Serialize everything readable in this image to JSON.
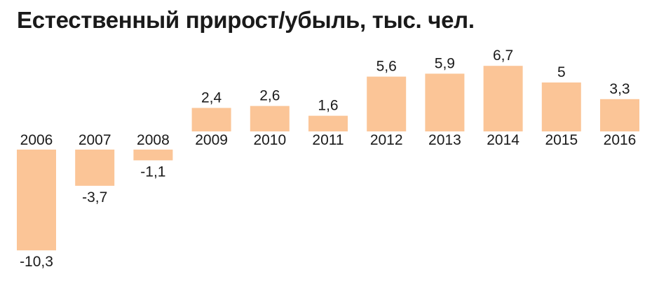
{
  "title": "Естественный прирост/убыль, тыс. чел.",
  "chart_data": {
    "type": "bar",
    "title": "Естественный прирост/убыль, тыс. чел.",
    "xlabel": "",
    "ylabel": "",
    "categories": [
      "2006",
      "2007",
      "2008",
      "2009",
      "2010",
      "2011",
      "2012",
      "2013",
      "2014",
      "2015",
      "2016"
    ],
    "values": [
      -10.3,
      -3.7,
      -1.1,
      2.4,
      2.6,
      1.6,
      5.6,
      5.9,
      6.7,
      5,
      3.3
    ],
    "value_labels": [
      "-10,3",
      "-3,7",
      "-1,1",
      "2,4",
      "2,6",
      "1,6",
      "5,6",
      "5,9",
      "6,7",
      "5",
      "3,3"
    ],
    "ylim": [
      -10.3,
      6.7
    ],
    "grid": false,
    "legend": "none",
    "bar_color": "#fbc597"
  }
}
